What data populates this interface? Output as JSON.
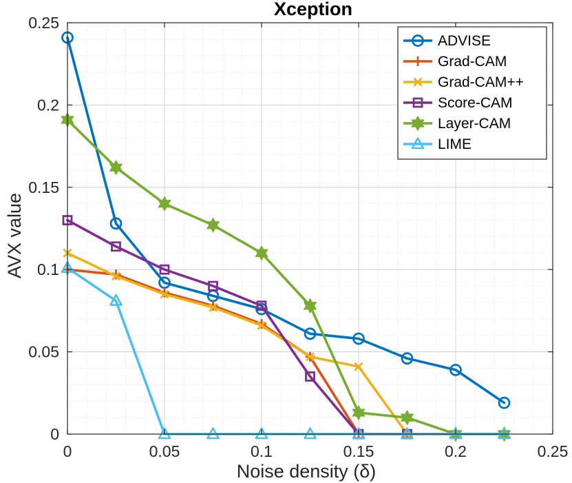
{
  "chart_data": {
    "type": "line",
    "title": "Xception",
    "xlabel": "Noise density (δ)",
    "ylabel": "AVX value",
    "xlim": [
      0,
      0.25
    ],
    "ylim": [
      0,
      0.25
    ],
    "xticks": [
      "0",
      "0.05",
      "0.1",
      "0.15",
      "0.2",
      "0.25"
    ],
    "yticks": [
      "0",
      "0.05",
      "0.1",
      "0.15",
      "0.2",
      "0.25"
    ],
    "grid": true,
    "legend_position": "top-right",
    "x": [
      0,
      0.025,
      0.05,
      0.075,
      0.1,
      0.125,
      0.15,
      0.175,
      0.2,
      0.225
    ],
    "series": [
      {
        "name": "ADVISE",
        "color": "#0072BD",
        "marker": "circle",
        "values": [
          0.241,
          0.128,
          0.092,
          0.084,
          0.076,
          0.061,
          0.058,
          0.046,
          0.039,
          0.019
        ]
      },
      {
        "name": "Grad-CAM",
        "color": "#D95319",
        "marker": "plus",
        "values": [
          0.1,
          0.097,
          0.086,
          0.078,
          0.067,
          0.047,
          0.0,
          0.0,
          0.0,
          0.0
        ]
      },
      {
        "name": "Grad-CAM++",
        "color": "#EDB120",
        "marker": "x",
        "values": [
          0.11,
          0.096,
          0.085,
          0.077,
          0.066,
          0.047,
          0.041,
          0.0,
          0.0,
          0.0
        ]
      },
      {
        "name": "Score-CAM",
        "color": "#7E2F8E",
        "marker": "square",
        "values": [
          0.13,
          0.114,
          0.1,
          0.09,
          0.078,
          0.035,
          0.0,
          0.0,
          null,
          null
        ]
      },
      {
        "name": "Layer-CAM",
        "color": "#77AC30",
        "marker": "hexagram",
        "values": [
          0.191,
          0.162,
          0.14,
          0.127,
          0.11,
          0.078,
          0.013,
          0.01,
          0.0,
          0.0
        ]
      },
      {
        "name": "LIME",
        "color": "#4DBEEE",
        "marker": "triangle",
        "values": [
          0.101,
          0.081,
          0.0,
          0.0,
          0.0,
          0.0,
          0.0,
          0.0,
          0.0,
          0.0
        ]
      }
    ]
  }
}
